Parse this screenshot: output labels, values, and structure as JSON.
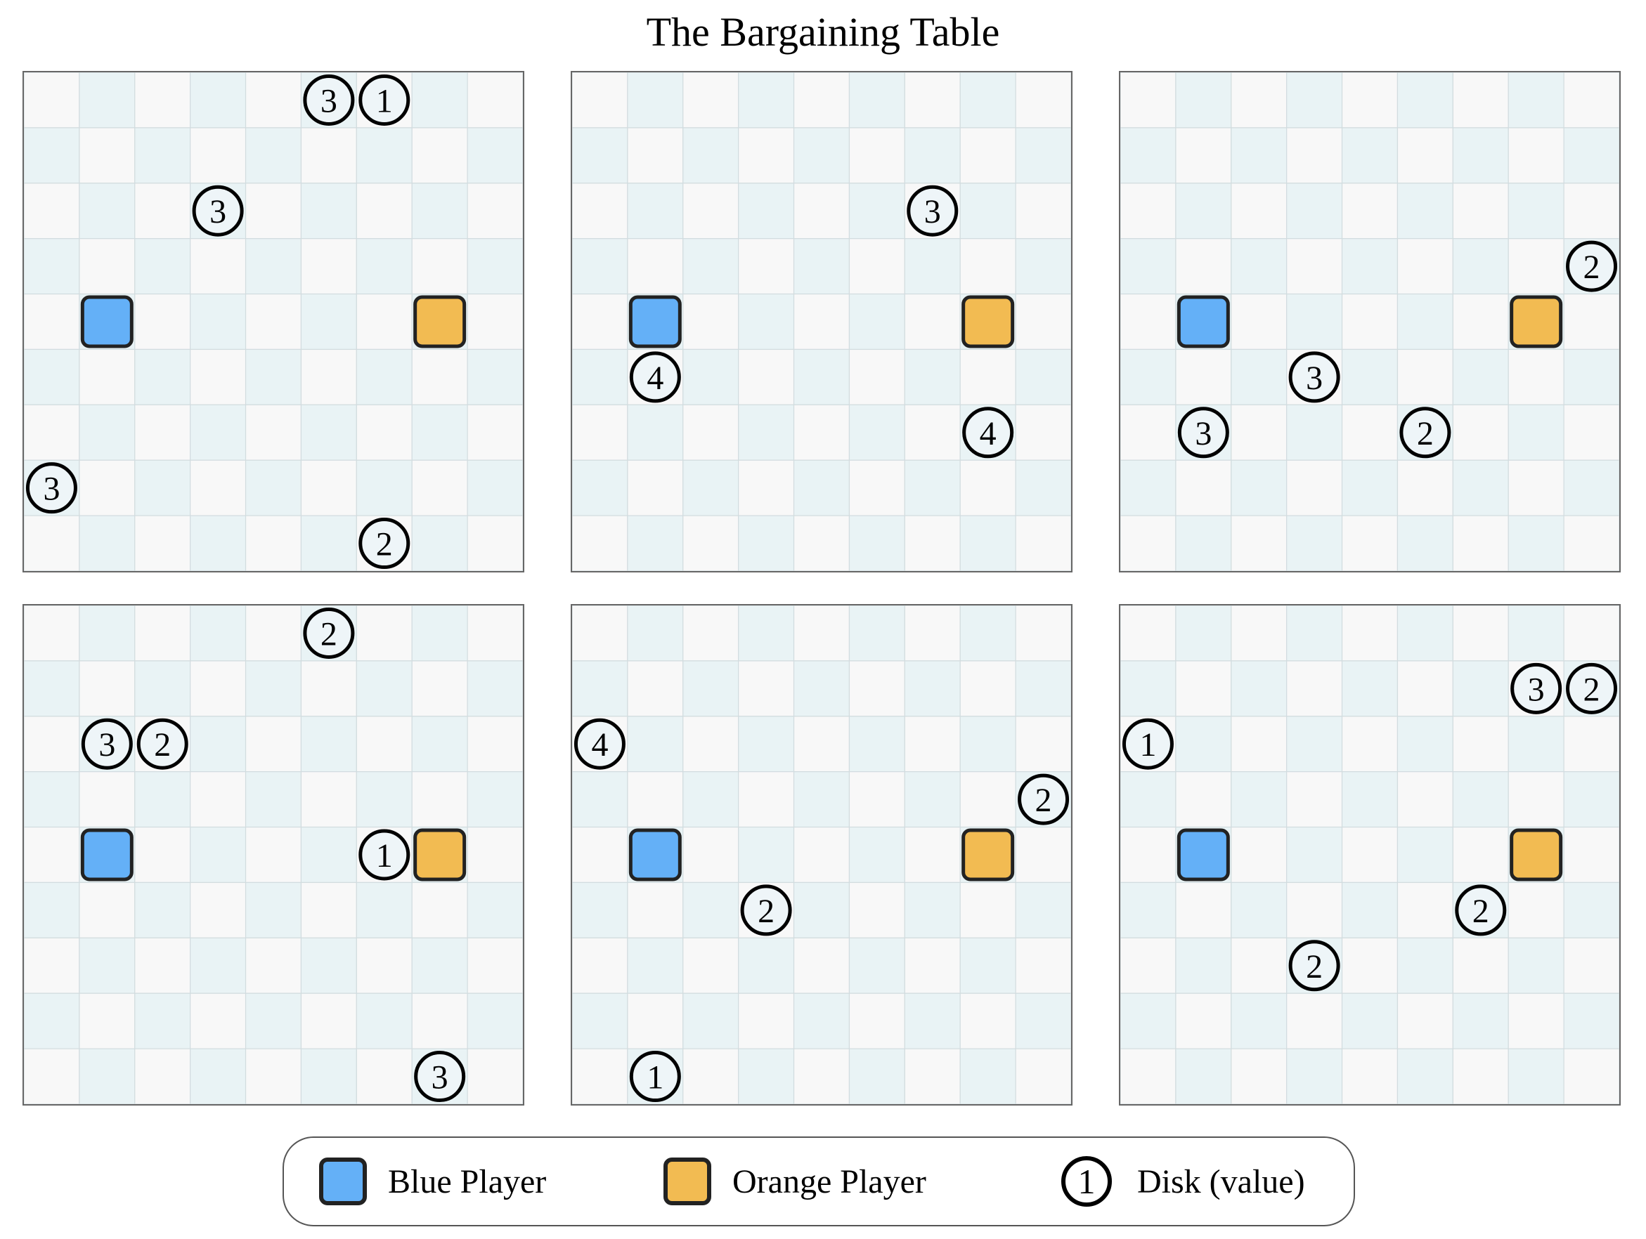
{
  "title": "The Bargaining Table",
  "colors": {
    "blue_player": "#64b0f7",
    "orange_player": "#f2bb52",
    "cell_light": "#f8f8f8",
    "cell_tint": "#e9f3f5",
    "disk_fill": "#eef5f8",
    "outline": "#222222"
  },
  "grid": {
    "rows": 9,
    "cols": 9
  },
  "boards": [
    {
      "blue": [
        4,
        1
      ],
      "orange": [
        4,
        7
      ],
      "disks": [
        {
          "row": 0,
          "col": 5.5,
          "value": "3"
        },
        {
          "row": 0,
          "col": 6.5,
          "value": "1"
        },
        {
          "row": 2,
          "col": 3.5,
          "value": "3"
        },
        {
          "row": 7,
          "col": 0.5,
          "value": "3"
        },
        {
          "row": 8,
          "col": 6.5,
          "value": "2"
        }
      ]
    },
    {
      "blue": [
        4,
        1
      ],
      "orange": [
        4,
        7
      ],
      "disks": [
        {
          "row": 2,
          "col": 6.5,
          "value": "3"
        },
        {
          "row": 5,
          "col": 1.5,
          "value": "4"
        },
        {
          "row": 6,
          "col": 7.5,
          "value": "4"
        }
      ]
    },
    {
      "blue": [
        4,
        1
      ],
      "orange": [
        4,
        7
      ],
      "disks": [
        {
          "row": 3,
          "col": 8.5,
          "value": "2"
        },
        {
          "row": 5,
          "col": 3.5,
          "value": "3"
        },
        {
          "row": 6,
          "col": 1.5,
          "value": "3"
        },
        {
          "row": 6,
          "col": 5.5,
          "value": "2"
        }
      ]
    },
    {
      "blue": [
        4,
        1
      ],
      "orange": [
        4,
        7
      ],
      "disks": [
        {
          "row": 0,
          "col": 5.5,
          "value": "2"
        },
        {
          "row": 2,
          "col": 1.5,
          "value": "3"
        },
        {
          "row": 2,
          "col": 2.5,
          "value": "2"
        },
        {
          "row": 4,
          "col": 6.5,
          "value": "1"
        },
        {
          "row": 8,
          "col": 7.5,
          "value": "3"
        }
      ]
    },
    {
      "blue": [
        4,
        1
      ],
      "orange": [
        4,
        7
      ],
      "disks": [
        {
          "row": 2,
          "col": 0.5,
          "value": "4"
        },
        {
          "row": 3,
          "col": 8.5,
          "value": "2"
        },
        {
          "row": 5,
          "col": 3.5,
          "value": "2"
        },
        {
          "row": 8,
          "col": 1.5,
          "value": "1"
        }
      ]
    },
    {
      "blue": [
        4,
        1
      ],
      "orange": [
        4,
        7
      ],
      "disks": [
        {
          "row": 1,
          "col": 7.5,
          "value": "3"
        },
        {
          "row": 1,
          "col": 8.5,
          "value": "2"
        },
        {
          "row": 2,
          "col": 0.5,
          "value": "1"
        },
        {
          "row": 5,
          "col": 6.5,
          "value": "2"
        },
        {
          "row": 6,
          "col": 3.5,
          "value": "2"
        }
      ]
    }
  ],
  "legend": {
    "blue_label": "Blue Player",
    "orange_label": "Orange Player",
    "disk_sample": "1",
    "disk_label": "Disk (value)"
  }
}
